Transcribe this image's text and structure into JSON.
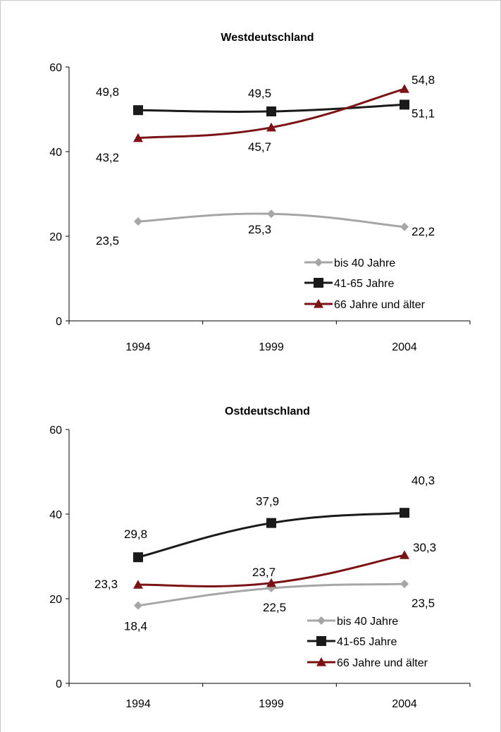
{
  "chart_data": [
    {
      "type": "line",
      "title": "Westdeutschland",
      "categories": [
        "1994",
        "1999",
        "2004"
      ],
      "y_ticks": [
        "0",
        "20",
        "40",
        "60"
      ],
      "ylim": [
        0,
        60
      ],
      "legend_position": "bottom-right",
      "series": [
        {
          "name": "bis 40 Jahre",
          "values": [
            23.5,
            25.3,
            22.2
          ],
          "labels": [
            "23,5",
            "25,3",
            "22,2"
          ],
          "color": "#a6a6a6",
          "marker": "diamond"
        },
        {
          "name": "41-65 Jahre",
          "values": [
            49.8,
            49.5,
            51.1
          ],
          "labels": [
            "49,8",
            "49,5",
            "51,1"
          ],
          "color": "#1a1a1a",
          "marker": "square"
        },
        {
          "name": "66 Jahre und älter",
          "values": [
            43.2,
            45.7,
            54.8
          ],
          "labels": [
            "43,2",
            "45,7",
            "54,8"
          ],
          "color": "#7b1316",
          "marker": "triangle"
        }
      ]
    },
    {
      "type": "line",
      "title": "Ostdeutschland",
      "categories": [
        "1994",
        "1999",
        "2004"
      ],
      "y_ticks": [
        "0",
        "20",
        "40",
        "60"
      ],
      "ylim": [
        0,
        60
      ],
      "legend_position": "bottom-right",
      "series": [
        {
          "name": "bis 40 Jahre",
          "values": [
            18.4,
            22.5,
            23.5
          ],
          "labels": [
            "18,4",
            "22,5",
            "23,5"
          ],
          "color": "#a6a6a6",
          "marker": "diamond"
        },
        {
          "name": "41-65 Jahre",
          "values": [
            29.8,
            37.9,
            40.3
          ],
          "labels": [
            "29,8",
            "37,9",
            "40,3"
          ],
          "color": "#1a1a1a",
          "marker": "square"
        },
        {
          "name": "66 Jahre und älter",
          "values": [
            23.3,
            23.7,
            30.3
          ],
          "labels": [
            "23,3",
            "23,7",
            "30,3"
          ],
          "color": "#7b1316",
          "marker": "triangle"
        }
      ]
    }
  ]
}
